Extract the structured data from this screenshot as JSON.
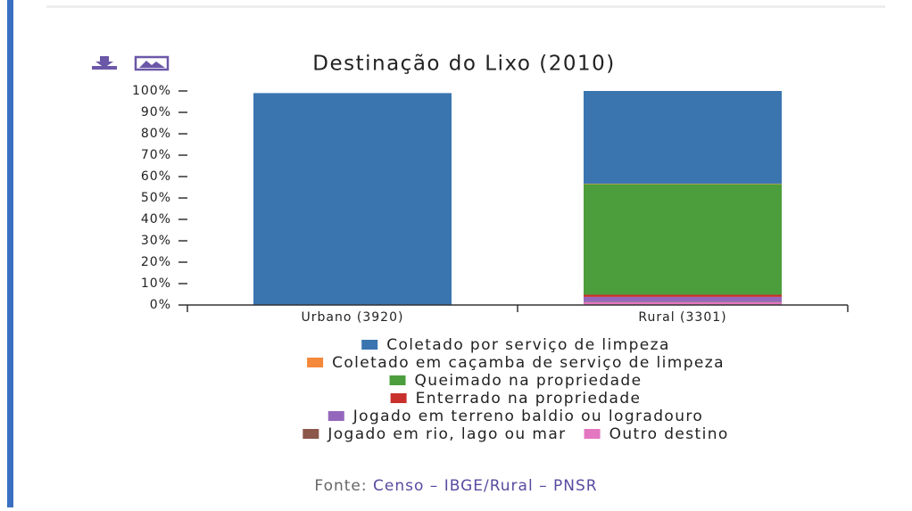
{
  "chart_data": {
    "type": "bar",
    "stacked": true,
    "title": "Destinação do Lixo (2010)",
    "categories": [
      "Urbano (3920)",
      "Rural (3301)"
    ],
    "series": [
      {
        "name": "Coletado por serviço de limpeza",
        "color": "#3a75b0",
        "values": [
          99,
          43.3
        ]
      },
      {
        "name": "Coletado em caçamba de serviço de limpeza",
        "color": "#f5883a",
        "values": [
          0,
          0.2
        ]
      },
      {
        "name": "Queimado na propriedade",
        "color": "#4c9e3c",
        "values": [
          0,
          51.7
        ]
      },
      {
        "name": "Enterrado na propriedade",
        "color": "#c9302c",
        "values": [
          0,
          1
        ]
      },
      {
        "name": "Jogado em terreno baldio ou logradouro",
        "color": "#9467bd",
        "values": [
          0,
          2.3
        ]
      },
      {
        "name": "Jogado em rio, lago ou mar",
        "color": "#8c564b",
        "values": [
          0,
          0.2
        ]
      },
      {
        "name": "Outro destino",
        "color": "#e377c2",
        "values": [
          0,
          1.3
        ]
      }
    ],
    "ylim": [
      0,
      100
    ],
    "yticks": [
      {
        "value": 0,
        "label": "0%"
      },
      {
        "value": 10,
        "label": "10%"
      },
      {
        "value": 20,
        "label": "20%"
      },
      {
        "value": 30,
        "label": "30%"
      },
      {
        "value": 40,
        "label": "40%"
      },
      {
        "value": 50,
        "label": "50%"
      },
      {
        "value": 60,
        "label": "60%"
      },
      {
        "value": 70,
        "label": "70%"
      },
      {
        "value": 80,
        "label": "80%"
      },
      {
        "value": 90,
        "label": "90%"
      },
      {
        "value": 100,
        "label": "100%"
      }
    ],
    "source_label": "Fonte:",
    "source": "Censo – IBGE/Rural – PNSR"
  }
}
